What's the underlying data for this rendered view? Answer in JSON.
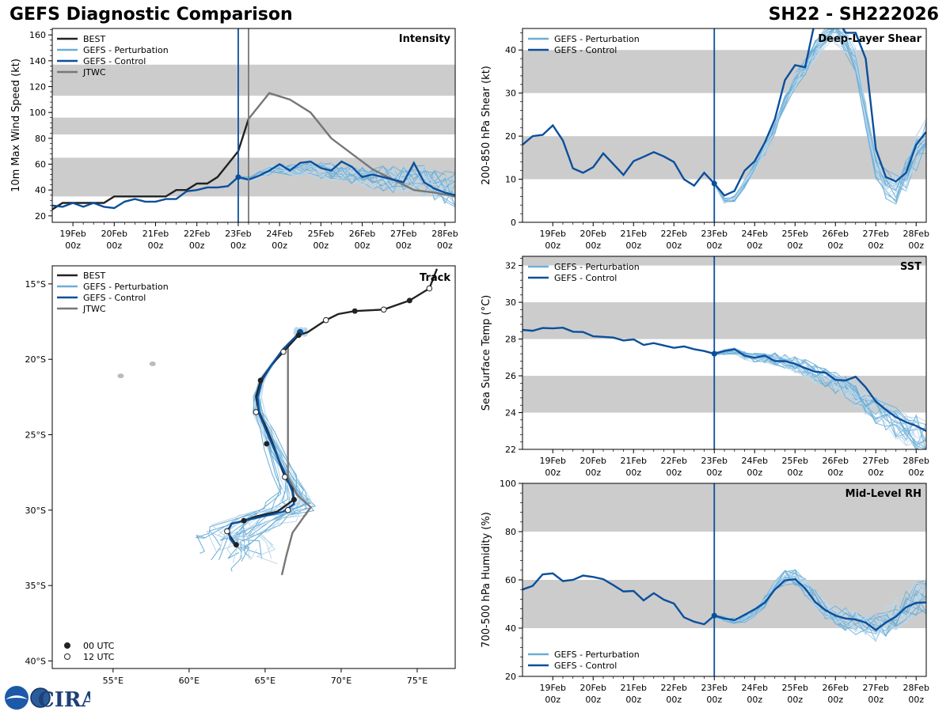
{
  "header": {
    "left_title": "GEFS Diagnostic Comparison",
    "right_title": "SH22 - SH222026"
  },
  "logo": {
    "text": "CIRA"
  },
  "legend_labels": {
    "best": "BEST",
    "perturbation": "GEFS - Perturbation",
    "control": "GEFS - Control",
    "jtwc": "JTWC",
    "utc00": "00 UTC",
    "utc12": "12 UTC"
  },
  "colors": {
    "best": "#222222",
    "perturbation": "#6aaed6",
    "perturbation_light": "#bcd8ec",
    "control": "#0b4f9c",
    "jtwc": "#777777",
    "band": "#cccccc",
    "init_line": "#0b4f9c",
    "jtwc_line": "#777777"
  },
  "chart_data": [
    {
      "id": "intensity",
      "type": "line",
      "title": "Intensity",
      "ylabel": "10m Max Wind Speed (kt)",
      "xlim": [
        -4.5,
        5.25
      ],
      "ylim": [
        15,
        165
      ],
      "yticks": [
        20,
        40,
        60,
        80,
        100,
        120,
        140,
        160
      ],
      "bands": [
        [
          35,
          65
        ],
        [
          83,
          96
        ],
        [
          113,
          137
        ]
      ],
      "init_day": 0,
      "jtwc_day": 0.25,
      "best": {
        "x": [
          -4.5,
          -4.25,
          -4,
          -3.75,
          -3.5,
          -3.25,
          -3,
          -2.75,
          -2.5,
          -2.25,
          -2,
          -1.75,
          -1.5,
          -1.25,
          -1,
          -0.75,
          -0.5,
          -0.25,
          0,
          0.25
        ],
        "y": [
          25,
          30,
          30,
          30,
          30,
          30,
          35,
          35,
          35,
          35,
          35,
          35,
          40,
          40,
          45,
          45,
          50,
          60,
          70,
          95
        ]
      },
      "jtwc": {
        "x": [
          0.25,
          0.75,
          1.25,
          1.75,
          2.25,
          2.75,
          3.25,
          3.75,
          4.25,
          4.75,
          5.25
        ],
        "y": [
          95,
          115,
          110,
          100,
          80,
          68,
          56,
          48,
          40,
          38,
          35
        ]
      },
      "control": {
        "x": [
          -4.5,
          -4.25,
          -4,
          -3.75,
          -3.5,
          -3.25,
          -3,
          -2.75,
          -2.5,
          -2.25,
          -2,
          -1.75,
          -1.5,
          -1.25,
          -1,
          -0.75,
          -0.5,
          -0.25,
          0,
          0.25,
          0.5,
          0.75,
          1,
          1.25,
          1.5,
          1.75,
          2,
          2.25,
          2.5,
          2.75,
          3,
          3.25,
          3.5,
          3.75,
          4,
          4.25,
          4.5,
          4.75,
          5,
          5.25
        ],
        "y": [
          28,
          27,
          30,
          27,
          30,
          27,
          26,
          31,
          33,
          31,
          31,
          33,
          33,
          39,
          40,
          42,
          42,
          43,
          50,
          48,
          51,
          55,
          60,
          55,
          61,
          62,
          57,
          55,
          62,
          58,
          50,
          52,
          50,
          48,
          46,
          61,
          46,
          41,
          38,
          36
        ]
      },
      "perturbation_base": {
        "x": [
          0,
          0.25,
          0.5,
          0.75,
          1,
          1.25,
          1.5,
          1.75,
          2,
          2.25,
          2.5,
          2.75,
          3,
          3.25,
          3.5,
          3.75,
          4,
          4.25,
          4.5,
          4.75,
          5,
          5.25
        ],
        "y": [
          50,
          48,
          52,
          55,
          57,
          55,
          56,
          57,
          55,
          54,
          53,
          52,
          50,
          50,
          49,
          48,
          47,
          48,
          47,
          45,
          43,
          40
        ]
      },
      "xticks": [
        "19Feb",
        "20Feb",
        "21Feb",
        "22Feb",
        "23Feb",
        "24Feb",
        "25Feb",
        "26Feb",
        "27Feb",
        "28Feb"
      ],
      "xtick_sub": "00z"
    },
    {
      "id": "shear",
      "type": "line",
      "title": "Deep-Layer Shear",
      "ylabel": "200-850 hPa Shear (kt)",
      "xlim": [
        -4.75,
        5.25
      ],
      "ylim": [
        0,
        45
      ],
      "yticks": [
        0,
        10,
        20,
        30,
        40
      ],
      "bands": [
        [
          10,
          20
        ],
        [
          30,
          40
        ]
      ],
      "init_day": 0,
      "control": {
        "x": [
          -4.75,
          -4.5,
          -4.25,
          -4,
          -3.75,
          -3.5,
          -3.25,
          -3,
          -2.75,
          -2.5,
          -2.25,
          -2,
          -1.75,
          -1.5,
          -1.25,
          -1,
          -0.75,
          -0.5,
          -0.25,
          0,
          0.25,
          0.5,
          0.75,
          1,
          1.25,
          1.5,
          1.75,
          2,
          2.25,
          2.5,
          2.75,
          3,
          3.25,
          3.5,
          3.75,
          4,
          4.25,
          4.5,
          4.75,
          5,
          5.25
        ],
        "y": [
          18,
          20,
          20.3,
          22.5,
          19,
          12.5,
          11.5,
          12.8,
          16,
          13.5,
          11,
          14.2,
          15.2,
          16.3,
          15.3,
          14,
          10,
          8.5,
          11.5,
          9,
          6.2,
          7.3,
          12,
          14.2,
          18.5,
          24,
          33,
          36.5,
          36,
          47,
          46,
          48,
          44,
          44,
          38,
          17,
          10.5,
          9.5,
          11.5,
          18,
          21
        ]
      },
      "perturbation_base": {
        "x": [
          0,
          0.25,
          0.5,
          0.75,
          1,
          1.25,
          1.5,
          1.75,
          2,
          2.25,
          2.5,
          2.75,
          3,
          3.25,
          3.5,
          3.75,
          4,
          4.25,
          4.5,
          4.75,
          5,
          5.25
        ],
        "y": [
          9,
          5,
          5.5,
          9,
          13,
          17,
          22,
          28,
          33,
          36,
          40,
          43,
          44,
          42,
          38,
          25,
          13,
          9,
          8,
          11,
          16,
          20
        ]
      },
      "xticks": [
        "19Feb",
        "20Feb",
        "21Feb",
        "22Feb",
        "23Feb",
        "24Feb",
        "25Feb",
        "26Feb",
        "27Feb",
        "28Feb"
      ],
      "xtick_sub": "00z"
    },
    {
      "id": "sst",
      "type": "line",
      "title": "SST",
      "ylabel": "Sea Surface Temp (°C)",
      "xlim": [
        -4.75,
        5.25
      ],
      "ylim": [
        22,
        32.5
      ],
      "yticks": [
        22,
        24,
        26,
        28,
        30,
        32
      ],
      "bands": [
        [
          24,
          26
        ],
        [
          28,
          30
        ],
        [
          32,
          34
        ]
      ],
      "init_day": 0,
      "control": {
        "x": [
          -4.75,
          -4.5,
          -4.25,
          -4,
          -3.75,
          -3.5,
          -3.25,
          -3,
          -2.75,
          -2.5,
          -2.25,
          -2,
          -1.75,
          -1.5,
          -1.25,
          -1,
          -0.75,
          -0.5,
          -0.25,
          0,
          0.25,
          0.5,
          0.75,
          1,
          1.25,
          1.5,
          1.75,
          2,
          2.25,
          2.5,
          2.75,
          3,
          3.25,
          3.5,
          3.75,
          4,
          4.25,
          4.5,
          4.75,
          5,
          5.25
        ],
        "y": [
          28.5,
          28.45,
          28.6,
          28.58,
          28.62,
          28.4,
          28.38,
          28.15,
          28.12,
          28.08,
          27.92,
          27.98,
          27.68,
          27.78,
          27.65,
          27.52,
          27.6,
          27.45,
          27.35,
          27.2,
          27.35,
          27.45,
          27.1,
          26.98,
          27.1,
          26.8,
          26.8,
          26.65,
          26.42,
          26.22,
          26.18,
          25.78,
          25.75,
          25.95,
          25.38,
          24.6,
          24.15,
          23.75,
          23.48,
          23.28,
          23.0
        ]
      },
      "perturbation_base": {
        "x": [
          0,
          0.25,
          0.5,
          0.75,
          1,
          1.25,
          1.5,
          1.75,
          2,
          2.25,
          2.5,
          2.75,
          3,
          3.25,
          3.5,
          3.75,
          4,
          4.25,
          4.5,
          4.75,
          5,
          5.25
        ],
        "y": [
          27.2,
          27.3,
          27.35,
          27.1,
          27,
          27,
          26.9,
          26.8,
          26.6,
          26.4,
          26.1,
          25.9,
          25.6,
          25.4,
          25.0,
          24.6,
          24.2,
          23.8,
          23.4,
          23.1,
          22.9,
          22.6
        ]
      },
      "xticks": [
        "19Feb",
        "20Feb",
        "21Feb",
        "22Feb",
        "23Feb",
        "24Feb",
        "25Feb",
        "26Feb",
        "27Feb",
        "28Feb"
      ],
      "xtick_sub": "00z"
    },
    {
      "id": "rh",
      "type": "line",
      "title": "Mid-Level RH",
      "ylabel": "700-500 hPa Humidity (%)",
      "xlim": [
        -4.75,
        5.25
      ],
      "ylim": [
        20,
        100
      ],
      "yticks": [
        20,
        40,
        60,
        80,
        100
      ],
      "bands": [
        [
          40,
          60
        ],
        [
          80,
          100
        ]
      ],
      "init_day": 0,
      "control": {
        "x": [
          -4.75,
          -4.5,
          -4.25,
          -4,
          -3.75,
          -3.5,
          -3.25,
          -3,
          -2.75,
          -2.5,
          -2.25,
          -2,
          -1.75,
          -1.5,
          -1.25,
          -1,
          -0.75,
          -0.5,
          -0.25,
          0,
          0.25,
          0.5,
          0.75,
          1,
          1.25,
          1.5,
          1.75,
          2,
          2.25,
          2.5,
          2.75,
          3,
          3.25,
          3.5,
          3.75,
          4,
          4.25,
          4.5,
          4.75,
          5,
          5.25
        ],
        "y": [
          56,
          57.5,
          62.3,
          62.7,
          59.5,
          60,
          61.8,
          61.2,
          60.3,
          57.8,
          55.2,
          55.4,
          51.5,
          54.5,
          51.8,
          50.2,
          44.5,
          42.7,
          41.6,
          45.2,
          44,
          43.3,
          45.5,
          47.8,
          50.5,
          56,
          59.8,
          60.3,
          56.5,
          50.8,
          47.5,
          45.2,
          44,
          43.6,
          42.3,
          39.2,
          42.3,
          44.8,
          48.7,
          50.5,
          50.7
        ]
      },
      "perturbation_base": {
        "x": [
          0,
          0.25,
          0.5,
          0.75,
          1,
          1.25,
          1.5,
          1.75,
          2,
          2.25,
          2.5,
          2.75,
          3,
          3.25,
          3.5,
          3.75,
          4,
          4.25,
          4.5,
          4.75,
          5,
          5.25
        ],
        "y": [
          45,
          44,
          43,
          44,
          47,
          51,
          57,
          61,
          61,
          57,
          52,
          48,
          46,
          44,
          42,
          40,
          40,
          43,
          46,
          49,
          52,
          53
        ]
      },
      "xticks": [
        "19Feb",
        "20Feb",
        "21Feb",
        "22Feb",
        "23Feb",
        "24Feb",
        "25Feb",
        "26Feb",
        "27Feb",
        "28Feb"
      ],
      "xtick_sub": "00z"
    },
    {
      "id": "track",
      "type": "scatter",
      "title": "Track",
      "xlim": [
        51,
        77.5
      ],
      "ylim": [
        -40.5,
        -13.8
      ],
      "xtick_labels": [
        "55°E",
        "60°E",
        "65°E",
        "70°E",
        "75°E"
      ],
      "xtick_values": [
        55,
        60,
        65,
        70,
        75
      ],
      "ytick_labels": [
        "15°S",
        "20°S",
        "25°S",
        "30°S",
        "35°S",
        "40°S"
      ],
      "ytick_values": [
        -15,
        -20,
        -25,
        -30,
        -35,
        -40
      ],
      "best": {
        "lon": [
          76.3,
          75.8,
          74.5,
          72.8,
          70.9,
          69.8,
          69.0,
          67.8,
          67.2,
          66.2,
          65.4,
          64.7,
          64.4,
          64.6,
          65.1,
          65.5,
          66.3,
          66.8,
          66.9,
          65.8,
          64.5,
          63.6,
          62.8,
          62.5,
          62.8,
          63.1
        ],
        "lat": [
          -14.0,
          -15.3,
          -16.1,
          -16.7,
          -16.8,
          -17.0,
          -17.4,
          -18.2,
          -18.4,
          -19.5,
          -20.4,
          -21.4,
          -22.5,
          -23.5,
          -24.6,
          -25.6,
          -27.8,
          -28.6,
          -29.3,
          -30.1,
          -30.4,
          -30.7,
          -30.9,
          -31.4,
          -31.9,
          -32.3
        ]
      },
      "best_00utc": {
        "lon": [
          74.5,
          70.9,
          67.2,
          64.7,
          65.1,
          66.9,
          63.6,
          63.1
        ],
        "lat": [
          -16.1,
          -16.8,
          -18.4,
          -21.4,
          -25.6,
          -29.3,
          -30.7,
          -32.3
        ]
      },
      "best_12utc": {
        "lon": [
          75.8,
          72.8,
          69.0,
          66.2,
          64.4,
          66.3,
          66.5,
          62.5
        ],
        "lat": [
          -15.3,
          -16.7,
          -17.4,
          -19.5,
          -23.5,
          -27.8,
          -30.0,
          -31.4
        ]
      },
      "control": {
        "lon": [
          67.3,
          66.2,
          65.4,
          64.8,
          64.5,
          64.6,
          65.1,
          65.7,
          66.4,
          66.8,
          66.9,
          66.2,
          64.5,
          62.8,
          62.6,
          62.7,
          63.0
        ],
        "lat": [
          -18.2,
          -19.3,
          -20.4,
          -21.4,
          -22.5,
          -23.6,
          -24.8,
          -26.2,
          -27.8,
          -28.8,
          -29.6,
          -30.1,
          -30.5,
          -30.9,
          -31.3,
          -31.9,
          -32.3
        ]
      },
      "jtwc": {
        "lon": [
          67.3,
          66.5,
          66.5,
          67.1,
          68.0,
          66.8,
          66.4,
          66.1
        ],
        "lat": [
          -18.2,
          -19.0,
          -27.8,
          -29.0,
          -29.8,
          -31.5,
          -33.0,
          -34.3
        ]
      },
      "islands": [
        {
          "lon": 55.5,
          "lat": -21.1
        },
        {
          "lon": 57.6,
          "lat": -20.3
        }
      ]
    }
  ]
}
